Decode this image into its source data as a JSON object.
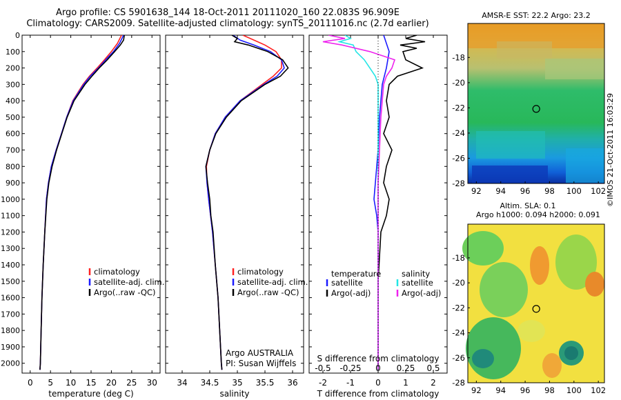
{
  "header": {
    "title_line1": "Argo profile: CS 5901638_144 18-Oct-2011 20111020_160 22.083S 96.909E",
    "title_line2": "Climatology: CARS2009. Satellite-adjusted climatology: synTS_20111016.nc (2.7d earlier)"
  },
  "colors": {
    "climatology": "#ff2020",
    "satellite": "#1a1aff",
    "argo": "#000000",
    "sal_satellite": "#22e5e5",
    "sal_argo": "#ee22ee"
  },
  "chart_data": [
    {
      "type": "line",
      "panel": "temperature",
      "xlabel": "temperature (deg C)",
      "ylabel": "",
      "xlim": [
        -2,
        32
      ],
      "ylim": [
        2060,
        0
      ],
      "xticks": [
        0,
        5,
        10,
        15,
        20,
        25,
        30
      ],
      "yticks": [
        0,
        100,
        200,
        300,
        400,
        500,
        600,
        700,
        800,
        900,
        1000,
        1100,
        1200,
        1300,
        1400,
        1500,
        1600,
        1700,
        1800,
        1900,
        2000
      ],
      "legend": [
        "climatology",
        "satellite-adj. clim.",
        "Argo(..raw -QC)"
      ],
      "legend_position": "lower-right",
      "series": [
        {
          "name": "climatology",
          "color": "#ff2020",
          "depth": [
            0,
            50,
            100,
            150,
            200,
            250,
            300,
            400,
            500,
            600,
            700,
            800,
            900,
            1000,
            1200,
            1400,
            1600,
            1800,
            2000,
            2040
          ],
          "values": [
            22.5,
            21.5,
            20.0,
            18.3,
            16.5,
            14.6,
            13.0,
            10.5,
            9.0,
            7.7,
            6.4,
            5.2,
            4.5,
            4.0,
            3.6,
            3.2,
            2.9,
            2.7,
            2.5,
            2.4
          ]
        },
        {
          "name": "satellite-adj. clim.",
          "color": "#1a1aff",
          "depth": [
            0,
            50,
            100,
            150,
            200,
            250,
            300,
            400,
            500,
            600,
            700,
            800,
            900,
            1000,
            1200,
            1400,
            1600,
            1800,
            2000,
            2040
          ],
          "values": [
            23.0,
            22.0,
            20.5,
            18.6,
            16.8,
            14.8,
            13.2,
            10.6,
            9.0,
            7.7,
            6.4,
            5.2,
            4.5,
            4.0,
            3.6,
            3.2,
            2.9,
            2.7,
            2.5,
            2.4
          ]
        },
        {
          "name": "Argo(..raw -QC)",
          "color": "#000000",
          "depth": [
            0,
            30,
            60,
            100,
            150,
            200,
            250,
            300,
            400,
            500,
            600,
            700,
            800,
            900,
            1000,
            1200,
            1400,
            1600,
            1800,
            2000,
            2040
          ],
          "values": [
            23.2,
            23.0,
            22.2,
            20.8,
            19.0,
            17.0,
            15.2,
            13.5,
            10.8,
            9.1,
            7.8,
            6.5,
            5.4,
            4.6,
            4.1,
            3.6,
            3.2,
            2.9,
            2.7,
            2.5,
            2.4
          ]
        }
      ]
    },
    {
      "type": "line",
      "panel": "salinity",
      "xlabel": "salinity",
      "xlim": [
        33.7,
        36.2
      ],
      "ylim": [
        2060,
        0
      ],
      "xticks": [
        34,
        34.5,
        35,
        35.5,
        36
      ],
      "legend": [
        "climatology",
        "satellite-adj. clim.",
        "Argo(..raw -QC)"
      ],
      "legend_position": "lower-right",
      "annotation": [
        "Argo AUSTRALIA",
        "PI: Susan Wijffels"
      ],
      "series": [
        {
          "name": "climatology",
          "color": "#ff2020",
          "depth": [
            0,
            30,
            60,
            100,
            150,
            200,
            250,
            300,
            400,
            500,
            600,
            700,
            800,
            900,
            1000,
            1200,
            1400,
            1600,
            1800,
            2000,
            2040
          ],
          "values": [
            35.1,
            35.3,
            35.5,
            35.7,
            35.8,
            35.8,
            35.65,
            35.45,
            35.05,
            34.78,
            34.6,
            34.5,
            34.44,
            34.45,
            34.48,
            34.55,
            34.6,
            34.65,
            34.68,
            34.71,
            34.72
          ]
        },
        {
          "name": "satellite-adj. clim.",
          "color": "#1a1aff",
          "depth": [
            0,
            30,
            60,
            100,
            150,
            200,
            250,
            300,
            400,
            500,
            600,
            700,
            800,
            900,
            1000,
            1200,
            1400,
            1600,
            1800,
            2000,
            2040
          ],
          "values": [
            34.92,
            35.05,
            35.3,
            35.6,
            35.8,
            35.85,
            35.72,
            35.48,
            35.05,
            34.78,
            34.6,
            34.5,
            34.43,
            34.45,
            34.48,
            34.55,
            34.6,
            34.65,
            34.68,
            34.71,
            34.72
          ]
        },
        {
          "name": "Argo(..raw -QC)",
          "color": "#000000",
          "depth": [
            0,
            20,
            40,
            60,
            100,
            150,
            200,
            250,
            300,
            400,
            500,
            600,
            700,
            800,
            900,
            1000,
            1100,
            1200,
            1400,
            1600,
            1800,
            2000,
            2040
          ],
          "values": [
            34.9,
            35.0,
            34.95,
            35.2,
            35.55,
            35.82,
            35.92,
            35.78,
            35.5,
            35.07,
            34.8,
            34.61,
            34.5,
            34.43,
            34.46,
            34.5,
            34.52,
            34.56,
            34.6,
            34.65,
            34.68,
            34.71,
            34.72
          ]
        }
      ]
    },
    {
      "type": "line",
      "panel": "difference",
      "xlabel": "T difference from climatology",
      "xlabel_top": "S difference from climatology",
      "xlim": [
        -2.5,
        2.5
      ],
      "ylim": [
        2060,
        0
      ],
      "xticks": [
        -2,
        -1,
        0,
        1,
        2
      ],
      "xticks_s": [
        "-0.5",
        "-0.25",
        "0",
        "0.25",
        "0.5"
      ],
      "legend": [
        "temperature",
        "satellite",
        "Argo(-adj)",
        "salinity",
        "satellite",
        "Argo(-adj)"
      ],
      "legend_position": "lower-center",
      "series": [
        {
          "name": "satellite",
          "color": "#1a1aff",
          "depth": [
            0,
            100,
            200,
            300,
            400,
            500,
            700,
            900,
            1000,
            1100,
            1200,
            1500,
            2000,
            2040
          ],
          "values": [
            0.2,
            0.4,
            0.3,
            0.15,
            0.1,
            0.05,
            0.0,
            -0.1,
            -0.15,
            -0.05,
            0.0,
            0.0,
            0.0,
            0.0
          ]
        },
        {
          "name": "Argo(-adj)",
          "color": "#000000",
          "depth": [
            0,
            20,
            40,
            60,
            80,
            100,
            150,
            200,
            250,
            300,
            400,
            500,
            600,
            700,
            800,
            900,
            1000,
            1100,
            1200,
            1500,
            2000,
            2040
          ],
          "values": [
            1.4,
            1.0,
            1.7,
            0.8,
            1.4,
            0.9,
            1.0,
            1.6,
            0.7,
            0.4,
            0.3,
            0.4,
            0.2,
            0.5,
            0.3,
            0.2,
            0.4,
            0.3,
            0.1,
            0.0,
            0.0,
            0.0
          ]
        },
        {
          "name": "satellite",
          "color": "#22e5e5",
          "depth": [
            0,
            20,
            40,
            60,
            100,
            150,
            200,
            250,
            300,
            400,
            500,
            700,
            900,
            1000,
            1200,
            1500,
            2000,
            2040
          ],
          "values": [
            -1.2,
            -1.0,
            -1.4,
            -0.9,
            -0.8,
            -0.5,
            -0.3,
            -0.1,
            0.0,
            0.0,
            0.0,
            0.0,
            0.0,
            0.0,
            0.0,
            0.0,
            0.0,
            0.0
          ]
        },
        {
          "name": "Argo(-adj)",
          "color": "#ee22ee",
          "depth": [
            0,
            20,
            40,
            60,
            100,
            150,
            200,
            250,
            300,
            400,
            500,
            700,
            900,
            1000,
            1200,
            1500,
            2000,
            2040
          ],
          "values": [
            -1.8,
            -1.2,
            -2.0,
            -1.3,
            -0.3,
            0.6,
            0.5,
            0.3,
            0.2,
            0.15,
            0.1,
            0.05,
            0.0,
            0.0,
            0.0,
            0.0,
            0.0,
            0.0
          ]
        }
      ]
    },
    {
      "type": "heatmap",
      "panel": "sst_map",
      "title": "AMSR-E SST: 22.2  Argo: 23.2",
      "xlim": [
        91.3,
        102.5
      ],
      "ylim": [
        -28,
        -15.3
      ],
      "xticks": [
        92,
        94,
        96,
        98,
        100,
        102
      ],
      "yticks": [
        -18,
        -20,
        -22,
        -24,
        -26,
        -28
      ],
      "marker": {
        "lon": 96.909,
        "lat": -22.083
      }
    },
    {
      "type": "heatmap",
      "panel": "sla_map",
      "title_line1": "Altim. SLA: 0.1",
      "title_line2": "Argo h1000: 0.094  h2000: 0.091",
      "xlim": [
        91.3,
        102.5
      ],
      "ylim": [
        -28,
        -15.3
      ],
      "xticks": [
        92,
        94,
        96,
        98,
        100,
        102
      ],
      "yticks": [
        -18,
        -20,
        -22,
        -24,
        -26,
        -28
      ],
      "marker": {
        "lon": 96.909,
        "lat": -22.083
      }
    }
  ],
  "footer": {
    "stamp": "©IMOS 21-Oct-2011 16:03:29"
  }
}
